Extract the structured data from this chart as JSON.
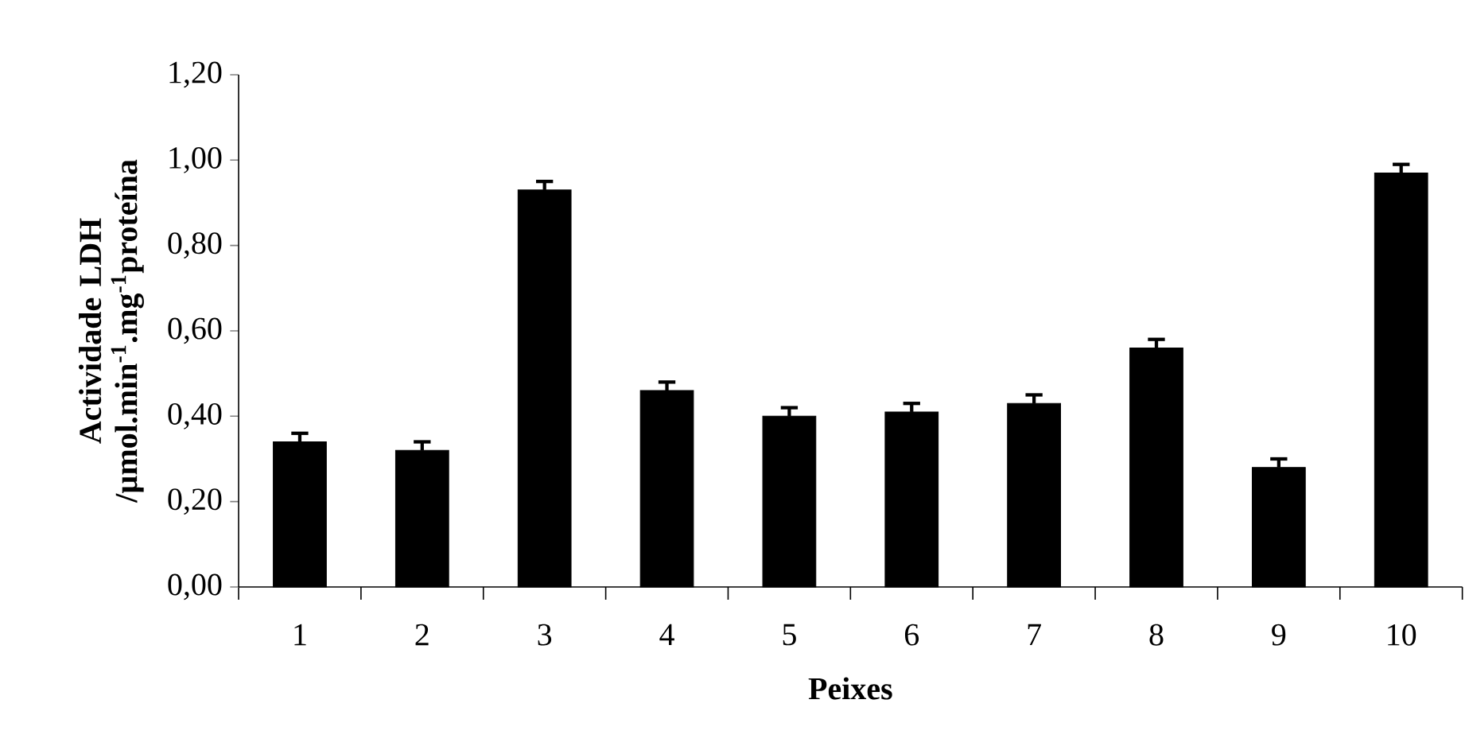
{
  "chart_data": {
    "type": "bar",
    "xlabel": "Peixes",
    "ylabel": "Actividade LDH /µmol.min$^{-1}$.mg$^{-1}$proteína",
    "categories": [
      "1",
      "2",
      "3",
      "4",
      "5",
      "6",
      "7",
      "8",
      "9",
      "10"
    ],
    "values": [
      0.34,
      0.32,
      0.93,
      0.46,
      0.4,
      0.41,
      0.43,
      0.56,
      0.28,
      0.97
    ],
    "errors": [
      0.02,
      0.02,
      0.02,
      0.02,
      0.02,
      0.02,
      0.02,
      0.02,
      0.02,
      0.02
    ],
    "color": "#000000",
    "ylim": [
      0,
      1.2
    ],
    "yticks": [
      {
        "value": 0,
        "label": "0,00"
      },
      {
        "value": 0.2,
        "label": "0,20"
      },
      {
        "value": 0.4,
        "label": "0,40"
      },
      {
        "value": 0.6,
        "label": "0,60"
      },
      {
        "value": 0.8,
        "label": "0,80"
      },
      {
        "value": 1.0,
        "label": "1,00"
      },
      {
        "value": 1.2,
        "label": "1,20"
      }
    ],
    "grid": false
  }
}
